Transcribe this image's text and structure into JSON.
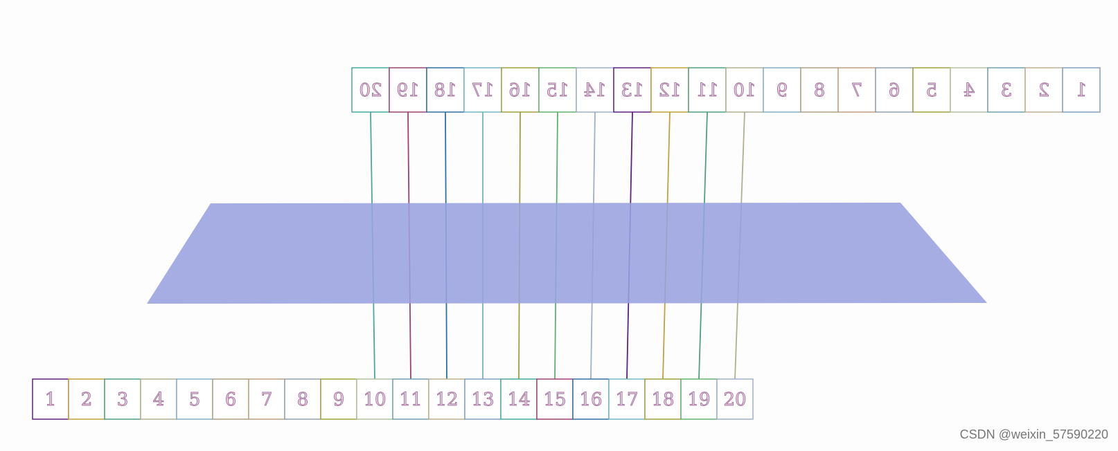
{
  "top_row": {
    "cells": [
      "20",
      "19",
      "18",
      "17",
      "16",
      "15",
      "14",
      "13",
      "12",
      "11",
      "10",
      "9",
      "8",
      "7",
      "6",
      "5",
      "4",
      "3",
      "2",
      "1"
    ]
  },
  "bottom_row": {
    "cells": [
      "1",
      "2",
      "3",
      "4",
      "5",
      "6",
      "7",
      "8",
      "9",
      "10",
      "11",
      "12",
      "13",
      "14",
      "15",
      "16",
      "17",
      "18",
      "19",
      "20"
    ]
  },
  "watermark": "CSDN @weixin_57590220"
}
